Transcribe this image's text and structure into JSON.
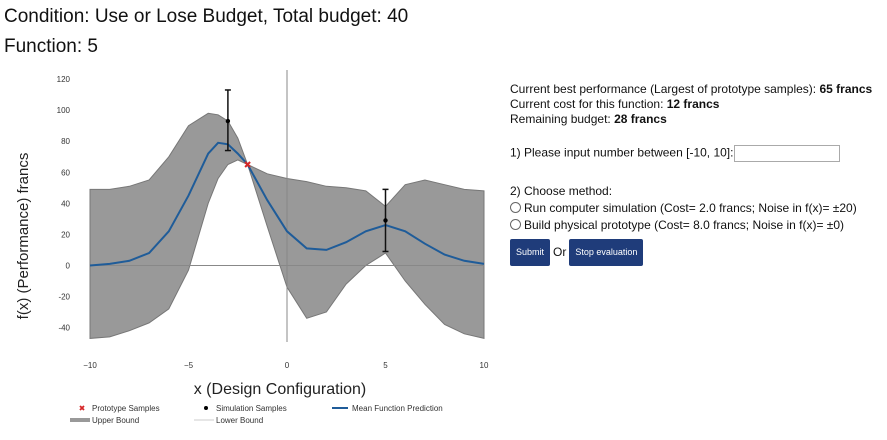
{
  "header": {
    "condition": "Condition: Use or Lose Budget, Total budget: 40",
    "function": "Function: 5"
  },
  "panel": {
    "best_prefix": "Current best performance (Largest of prototype samples): ",
    "best_value": "65 francs",
    "cost_prefix": "Current cost for this function: ",
    "cost_value": "12 francs",
    "budget_prefix": "Remaining budget: ",
    "budget_value": "28 francs",
    "input_label": "1) Please input number between [-10, 10]:",
    "input_value": "",
    "method_label": "2) Choose method:",
    "option_sim": "Run computer simulation (Cost= 2.0 francs; Noise in f(x)= ±20)",
    "option_phys": "Build physical prototype (Cost= 8.0 francs; Noise in f(x)= ±0)",
    "submit_label": "Submit",
    "or_label": "Or",
    "stop_label": "Stop evaluation"
  },
  "colors": {
    "band": "#999999",
    "mean_line": "#1f5c99",
    "prototype": "#d62728",
    "simulation": "#000000",
    "button": "#1f3c7a"
  },
  "chart_data": {
    "type": "line",
    "xlabel": "x (Design Configuration)",
    "ylabel": "f(x) (Performance) francs",
    "xlim": [
      -10,
      10
    ],
    "ylim": [
      -48,
      122
    ],
    "xticks": [
      -10,
      -5,
      0,
      5,
      10
    ],
    "yticks": [
      -40,
      -20,
      0,
      20,
      40,
      60,
      80,
      100,
      120
    ],
    "grid": false,
    "legend_position": "bottom",
    "legend": [
      {
        "name": "Prototype Samples",
        "marker": "cross",
        "color": "#d62728"
      },
      {
        "name": "Simulation Samples",
        "marker": "dot",
        "color": "#000000"
      },
      {
        "name": "Mean Function Prediction",
        "marker": "line",
        "color": "#1f5c99"
      },
      {
        "name": "Upper Bound",
        "marker": "thick",
        "color": "#999999"
      },
      {
        "name": "Lower Bound",
        "marker": "thin",
        "color": "#cccccc"
      }
    ],
    "x": [
      -10,
      -9,
      -8,
      -7,
      -6,
      -5,
      -4,
      -3.5,
      -3,
      -2.5,
      -2,
      -1,
      0,
      1,
      2,
      3,
      4,
      5,
      6,
      7,
      8,
      9,
      10
    ],
    "mean": [
      0,
      1,
      3,
      8,
      22,
      45,
      72,
      79,
      78,
      72,
      65,
      42,
      22,
      11,
      10,
      15,
      22,
      26,
      22,
      14,
      7,
      3,
      1
    ],
    "upper": [
      49,
      49,
      51,
      55,
      70,
      90,
      98,
      97,
      93,
      82,
      65,
      59,
      56,
      54,
      51,
      50,
      48,
      38,
      52,
      55,
      52,
      49,
      48
    ],
    "lower": [
      -47,
      -46,
      -42,
      -37,
      -28,
      -3,
      40,
      56,
      65,
      68,
      65,
      25,
      -14,
      -34,
      -30,
      -12,
      0,
      8,
      -10,
      -25,
      -38,
      -44,
      -47
    ],
    "simulation_samples": [
      {
        "x": -3,
        "y": 93,
        "err_low": 74,
        "err_high": 113
      },
      {
        "x": 5,
        "y": 29,
        "err_low": 9,
        "err_high": 49
      }
    ],
    "prototype_samples": [
      {
        "x": -2,
        "y": 65
      }
    ]
  }
}
